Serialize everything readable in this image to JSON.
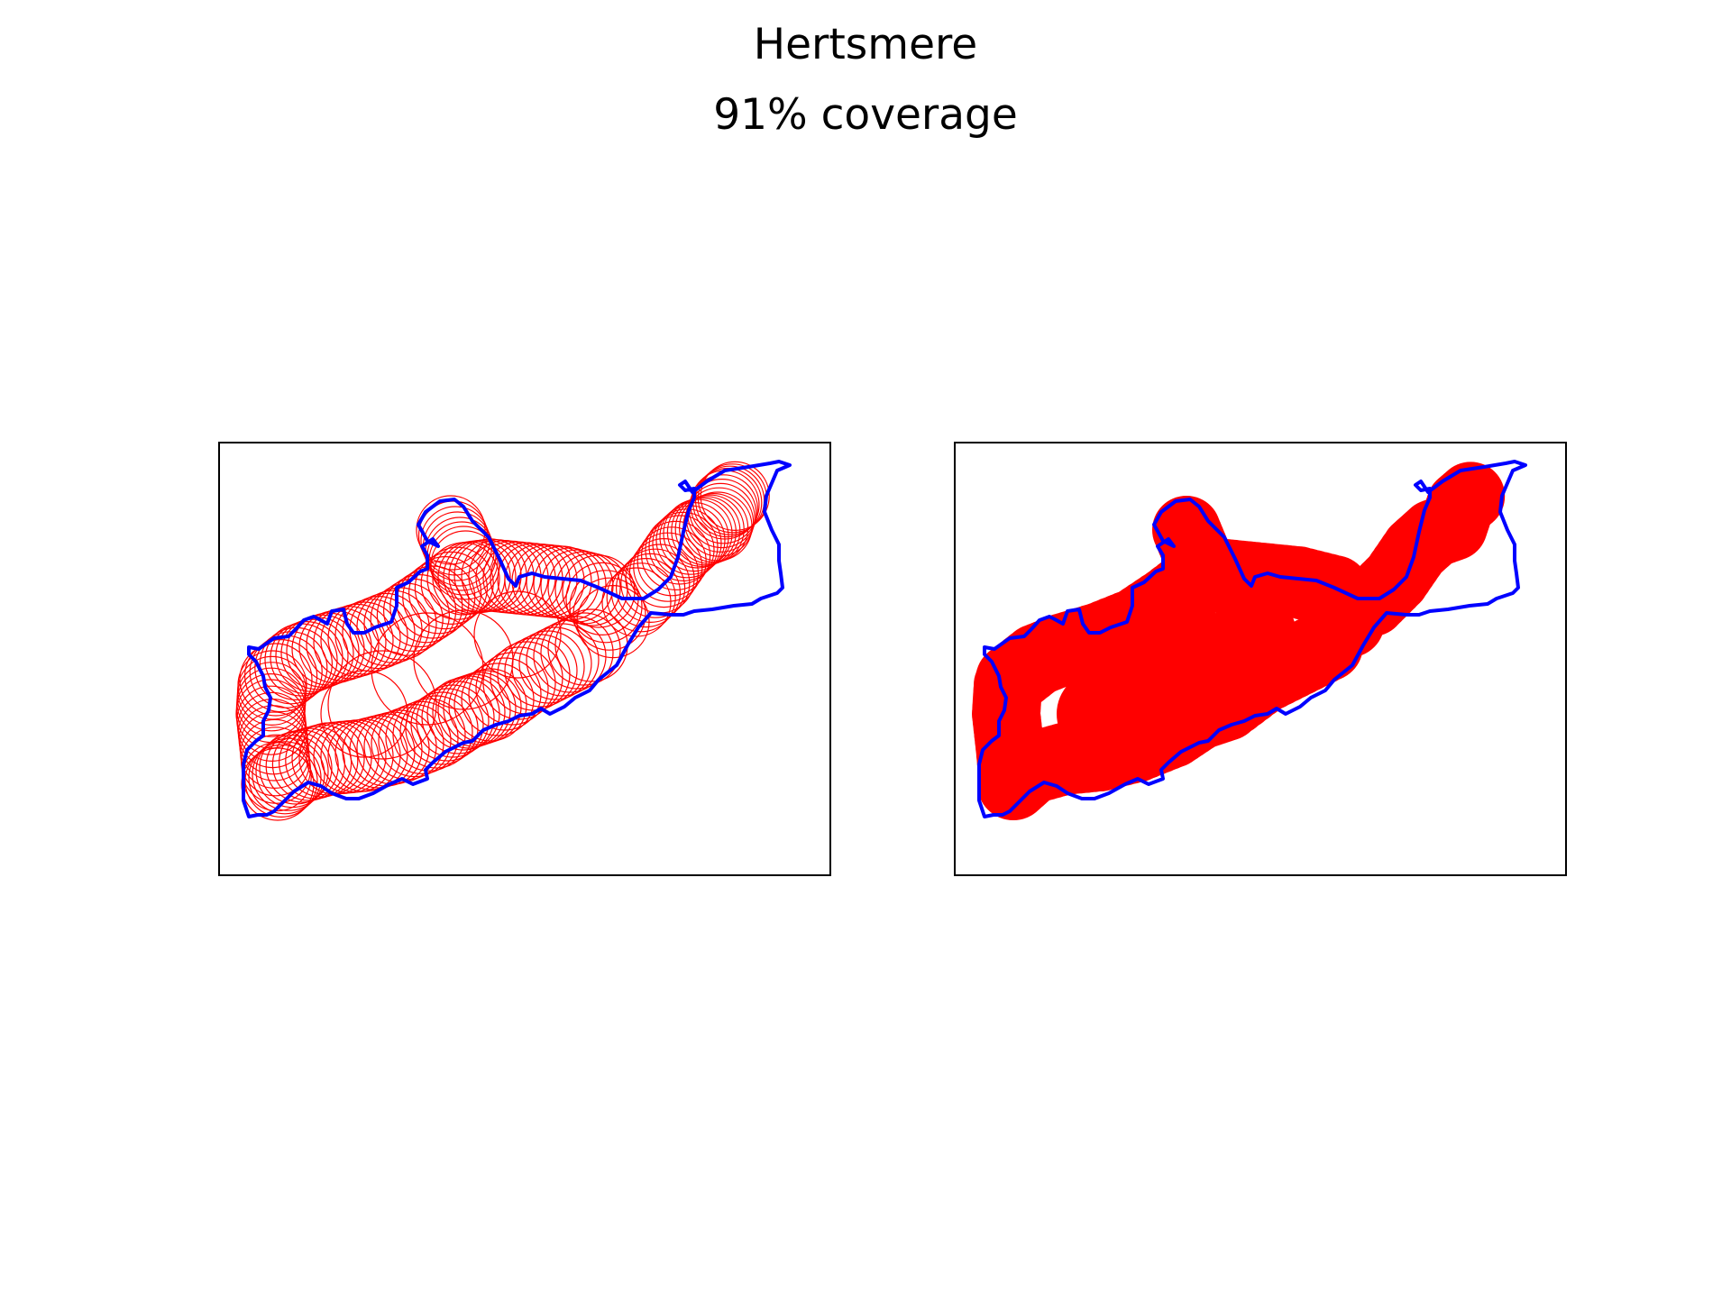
{
  "title": "Hertsmere",
  "subtitle": "91% coverage",
  "colors": {
    "boundary": "#0000ff",
    "coverage": "#ff0000",
    "frame": "#000000",
    "background": "#ffffff"
  },
  "panels": [
    {
      "name": "coverage-circles-panel",
      "style": "outline"
    },
    {
      "name": "coverage-filled-panel",
      "style": "filled"
    }
  ]
}
